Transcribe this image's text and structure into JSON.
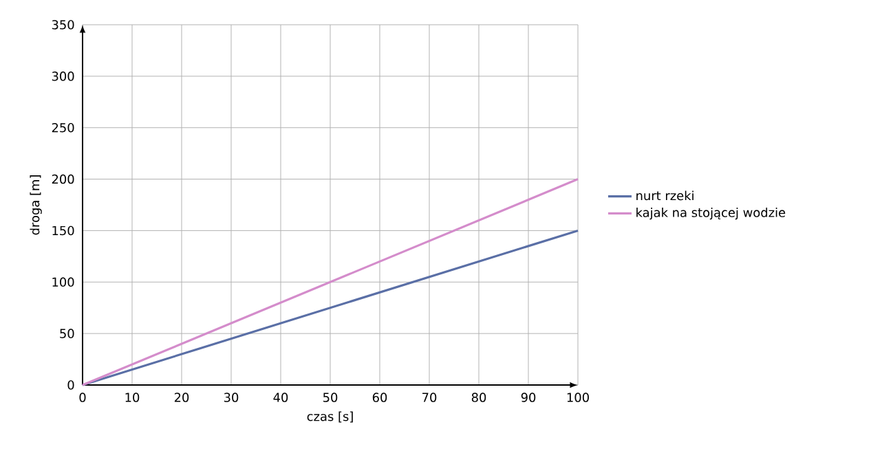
{
  "chart_data": {
    "type": "line",
    "xlabel": "czas [s]",
    "ylabel": "droga [m]",
    "x": [
      0,
      100
    ],
    "series": [
      {
        "name": "nurt rzeki",
        "color": "#5a6fa6",
        "values": [
          0,
          150
        ]
      },
      {
        "name": "kajak na stojącej wodzie",
        "color": "#d48ccb",
        "values": [
          0,
          200
        ]
      }
    ],
    "xlim": [
      0,
      100
    ],
    "ylim": [
      0,
      350
    ],
    "xticks": [
      0,
      10,
      20,
      30,
      40,
      50,
      60,
      70,
      80,
      90,
      100
    ],
    "yticks": [
      0,
      50,
      100,
      150,
      200,
      250,
      300,
      350
    ],
    "grid": true,
    "legend": "right",
    "marker": "none",
    "line_style": "solid"
  }
}
